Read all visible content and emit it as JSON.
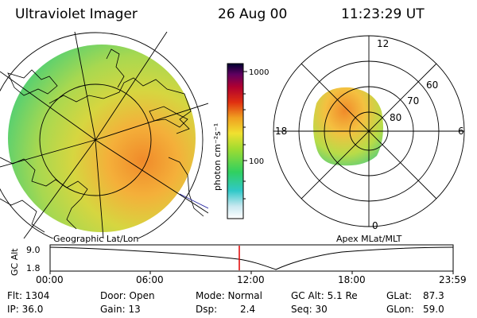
{
  "header": {
    "instrument": "Ultraviolet Imager",
    "date": "26 Aug 00",
    "time": "11:23:29 UT"
  },
  "colorbar": {
    "unit_label": "photon cm⁻²s⁻¹",
    "ticks": [
      "1000",
      "100"
    ]
  },
  "geo_panel": {
    "caption": "Geographic Lat/Lon"
  },
  "polar_panel": {
    "caption": "Apex MLat/MLT",
    "mlt_labels": [
      "12",
      "18",
      "6",
      "0"
    ],
    "mlat_labels": [
      "60",
      "70",
      "80"
    ]
  },
  "altitude_plot": {
    "ylabel": "GC Alt",
    "ticks_y": [
      "9.0",
      "1.8"
    ],
    "ticks_x": [
      "00:00",
      "06:00",
      "12:00",
      "18:00",
      "23:59"
    ],
    "marker_color": "#e00000"
  },
  "info": {
    "flt": "Flt: 1304",
    "ip": "IP: 36.0",
    "door": "Door: Open",
    "gain": "Gain: 13",
    "mode": "Mode: Normal",
    "dsp_label": "Dsp:",
    "dsp_value": "2.4",
    "gc_alt": "GC Alt: 5.1 Re",
    "seq": "Seq: 30",
    "glat_label": "GLat:",
    "glat_value": "87.3",
    "glon_label": "GLon:",
    "glon_value": "59.0"
  }
}
